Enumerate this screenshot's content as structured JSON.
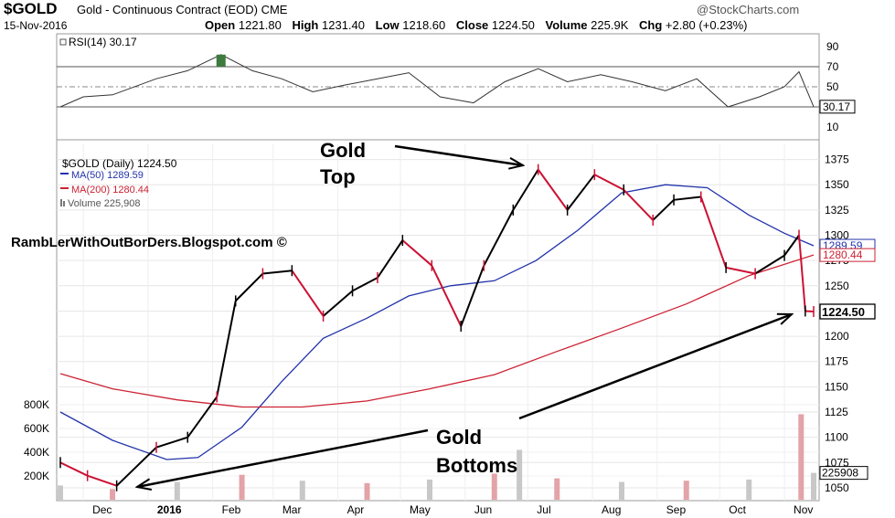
{
  "header": {
    "symbol": "$GOLD",
    "subtitle": "Gold - Continuous Contract (EOD) CME",
    "date": "15-Nov-2016",
    "brand": "@StockCharts.com",
    "ohlc": [
      {
        "label": "Open",
        "value": "1221.80"
      },
      {
        "label": "High",
        "value": "1231.40"
      },
      {
        "label": "Low",
        "value": "1218.60"
      },
      {
        "label": "Close",
        "value": "1224.50"
      },
      {
        "label": "Volume",
        "value": "225.9K"
      },
      {
        "label": "Chg",
        "value": "+2.80 (+0.23%)"
      }
    ]
  },
  "annotations": {
    "top_line1": "Gold",
    "top_line2": "Top",
    "bottom_line1": "Gold",
    "bottom_line2": "Bottoms",
    "watermark": "RambLerWithOutBorDers.Blogspot.com ©"
  },
  "colors": {
    "ma50": "#2233aa",
    "ma200": "#cc2233",
    "price_up": "#000000",
    "price_down": "#cc1133",
    "volume": "#c8c8c8",
    "rsi_line": "#333333",
    "rsi_fill": "#3d7a3d"
  },
  "chart_data": [
    {
      "type": "line",
      "panel": "rsi",
      "legend": "RSI(14) 30.17",
      "last_label": "30.17",
      "ylim": [
        0,
        100
      ],
      "ticks": [
        "90",
        "70",
        "50",
        "30",
        "10"
      ],
      "reference_levels": [
        70,
        50,
        30
      ],
      "x": [
        "2015-11-20",
        "2015-12-01",
        "2015-12-15",
        "2016-01-05",
        "2016-01-20",
        "2016-02-05",
        "2016-02-20",
        "2016-03-05",
        "2016-03-20",
        "2016-04-05",
        "2016-04-20",
        "2016-05-05",
        "2016-05-20",
        "2016-06-05",
        "2016-06-20",
        "2016-07-06",
        "2016-07-20",
        "2016-08-05",
        "2016-08-20",
        "2016-09-05",
        "2016-09-20",
        "2016-10-05",
        "2016-10-20",
        "2016-11-01",
        "2016-11-08",
        "2016-11-15"
      ],
      "values": [
        30,
        40,
        42,
        58,
        66,
        82,
        66,
        58,
        45,
        52,
        58,
        64,
        40,
        34,
        55,
        68,
        55,
        62,
        55,
        46,
        58,
        30,
        40,
        50,
        65,
        30.17
      ]
    },
    {
      "type": "line",
      "panel": "price",
      "title": "$GOLD (Daily) 1224.50",
      "ylim": [
        1040,
        1390
      ],
      "ticks": [
        "1375",
        "1350",
        "1325",
        "1300",
        "1275",
        "1250",
        "1225",
        "1200",
        "1175",
        "1150",
        "1125",
        "1100",
        "1075",
        "1050"
      ],
      "x_ticks": [
        "Dec",
        "2016",
        "Feb",
        "Mar",
        "Apr",
        "May",
        "Jun",
        "Jul",
        "Aug",
        "Sep",
        "Oct",
        "Nov"
      ],
      "last_price_label": "1224.50",
      "series": [
        {
          "name": "MA(50) 1289.59",
          "x": [
            "2015-11-20",
            "2015-12-15",
            "2016-01-10",
            "2016-01-25",
            "2016-02-15",
            "2016-03-05",
            "2016-03-25",
            "2016-04-15",
            "2016-05-05",
            "2016-05-25",
            "2016-06-15",
            "2016-07-05",
            "2016-07-25",
            "2016-08-15",
            "2016-09-05",
            "2016-09-25",
            "2016-10-15",
            "2016-11-01",
            "2016-11-15"
          ],
          "values": [
            1125,
            1097,
            1078,
            1080,
            1110,
            1155,
            1198,
            1218,
            1240,
            1250,
            1255,
            1275,
            1305,
            1342,
            1350,
            1347,
            1320,
            1302,
            1289.59
          ]
        },
        {
          "name": "MA(200) 1280.44",
          "x": [
            "2015-11-20",
            "2015-12-15",
            "2016-01-15",
            "2016-02-15",
            "2016-03-15",
            "2016-04-15",
            "2016-05-15",
            "2016-06-15",
            "2016-07-15",
            "2016-08-15",
            "2016-09-15",
            "2016-10-15",
            "2016-11-15"
          ],
          "values": [
            1163,
            1148,
            1137,
            1130,
            1130,
            1136,
            1148,
            1162,
            1185,
            1208,
            1232,
            1260,
            1280.44
          ]
        },
        {
          "name": "$GOLD (Daily) 1224.50",
          "x": [
            "2015-11-20",
            "2015-12-03",
            "2015-12-17",
            "2016-01-05",
            "2016-01-20",
            "2016-02-03",
            "2016-02-12",
            "2016-02-25",
            "2016-03-10",
            "2016-03-25",
            "2016-04-08",
            "2016-04-20",
            "2016-05-02",
            "2016-05-16",
            "2016-05-30",
            "2016-06-10",
            "2016-06-24",
            "2016-07-06",
            "2016-07-20",
            "2016-08-02",
            "2016-08-16",
            "2016-08-30",
            "2016-09-09",
            "2016-09-22",
            "2016-10-04",
            "2016-10-18",
            "2016-11-01",
            "2016-11-08",
            "2016-11-11",
            "2016-11-15"
          ],
          "values": [
            1075,
            1062,
            1052,
            1090,
            1100,
            1140,
            1235,
            1262,
            1265,
            1220,
            1245,
            1258,
            1295,
            1270,
            1210,
            1270,
            1325,
            1365,
            1325,
            1360,
            1345,
            1315,
            1335,
            1338,
            1268,
            1262,
            1280,
            1300,
            1225,
            1224.5
          ]
        }
      ]
    },
    {
      "type": "bar",
      "panel": "volume",
      "legend": "Volume 225,908",
      "last_label": "225908",
      "ticks": [
        "800K",
        "600K",
        "400K",
        "200K"
      ],
      "ylim": [
        0,
        900000
      ],
      "x": [
        "2015-11-20",
        "2015-12-15",
        "2016-01-15",
        "2016-02-15",
        "2016-03-15",
        "2016-04-15",
        "2016-05-15",
        "2016-06-15",
        "2016-06-27",
        "2016-07-15",
        "2016-08-15",
        "2016-09-15",
        "2016-10-15",
        "2016-11-09",
        "2016-11-15"
      ],
      "values": [
        120000,
        90000,
        150000,
        210000,
        160000,
        140000,
        170000,
        220000,
        420000,
        180000,
        150000,
        160000,
        170000,
        720000,
        225908
      ]
    }
  ]
}
